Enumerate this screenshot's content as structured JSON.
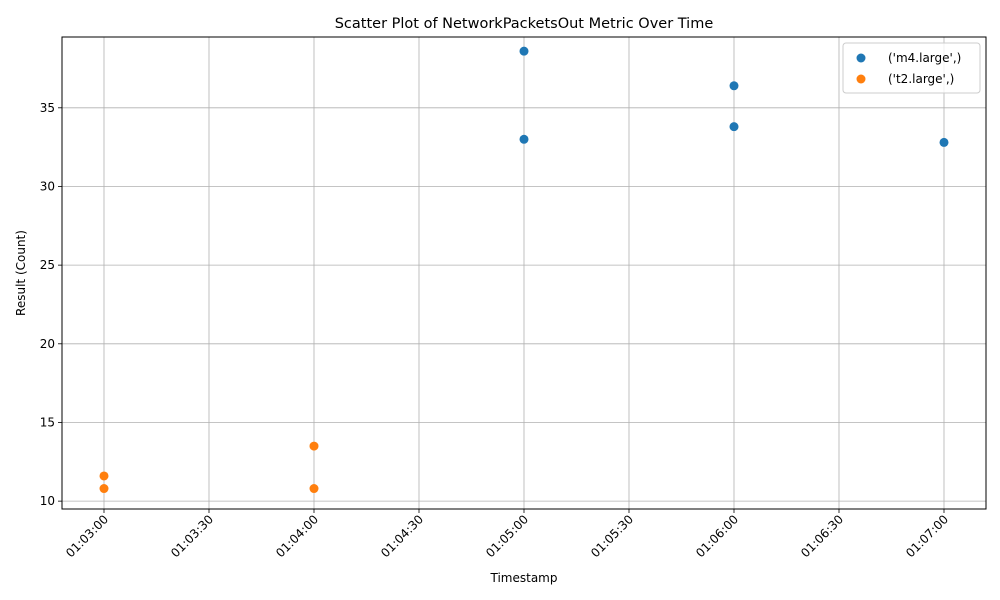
{
  "chart_data": {
    "type": "scatter",
    "title": "Scatter Plot of NetworkPacketsOut Metric Over Time",
    "xlabel": "Timestamp",
    "ylabel": "Result (Count)",
    "x_ticks": [
      "01:03:00",
      "01:03:30",
      "01:04:00",
      "01:04:30",
      "01:05:00",
      "01:05:30",
      "01:06:00",
      "01:06:30",
      "01:07:00"
    ],
    "y_ticks": [
      10,
      15,
      20,
      25,
      30,
      35
    ],
    "xlim": [
      "01:02:48",
      "01:07:12"
    ],
    "ylim": [
      9.5,
      39.5
    ],
    "grid": true,
    "legend_position": "top-right",
    "series": [
      {
        "name": "('m4.large',)",
        "color": "#1f77b4",
        "points": [
          {
            "x": "01:05:00",
            "y": 38.6
          },
          {
            "x": "01:05:00",
            "y": 33.0
          },
          {
            "x": "01:06:00",
            "y": 36.4
          },
          {
            "x": "01:06:00",
            "y": 33.8
          },
          {
            "x": "01:07:00",
            "y": 32.8
          }
        ]
      },
      {
        "name": "('t2.large',)",
        "color": "#ff7f0e",
        "points": [
          {
            "x": "01:03:00",
            "y": 11.6
          },
          {
            "x": "01:03:00",
            "y": 10.8
          },
          {
            "x": "01:04:00",
            "y": 13.5
          },
          {
            "x": "01:04:00",
            "y": 10.8
          }
        ]
      }
    ]
  }
}
